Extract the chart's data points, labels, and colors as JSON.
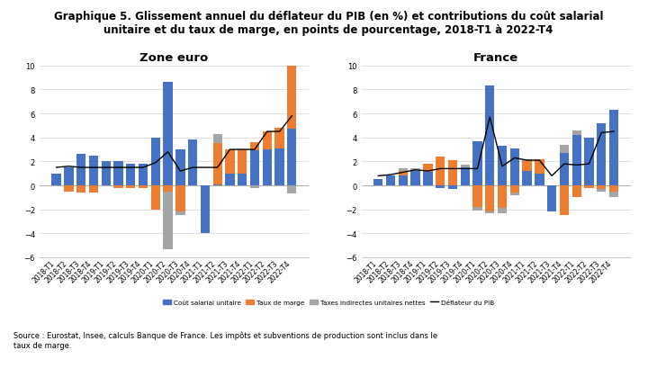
{
  "title": "Graphique 5. Glissement annuel du déflateur du PIB (en %) et contributions du coût salarial\nunitaire et du taux de marge, en points de pourcentage, 2018-T1 à 2022-T4",
  "source": "Source : Eurostat, Insee, calculs Banque de France. Les impôts et subventions de production sont inclus dans le\ntaux de marge.",
  "subtitle_left": "Zone euro",
  "subtitle_right": "France",
  "categories": [
    "2018-T1",
    "2018-T2",
    "2018-T3",
    "2018-T4",
    "2019-T1",
    "2019-T2",
    "2019-T3",
    "2019-T4",
    "2020-T1",
    "2020-T2",
    "2020-T3",
    "2020-T4",
    "2021-T1",
    "2021-T2",
    "2021-T3",
    "2021-T4",
    "2022-T1",
    "2022-T2",
    "2022-T3",
    "2022-T4"
  ],
  "zone_euro": {
    "cout_salarial": [
      1.0,
      1.5,
      2.6,
      2.5,
      2.0,
      2.0,
      1.8,
      1.8,
      4.0,
      8.6,
      3.0,
      3.8,
      -4.0,
      0.1,
      1.0,
      1.0,
      2.9,
      3.0,
      3.1,
      4.7
    ],
    "taux_marge": [
      0.0,
      -0.5,
      -0.6,
      -0.6,
      0.0,
      -0.2,
      -0.2,
      -0.2,
      -2.0,
      -0.5,
      -2.2,
      0.0,
      0.0,
      3.4,
      2.0,
      2.0,
      0.7,
      1.5,
      1.7,
      6.5
    ],
    "taxes_indirectes": [
      0.0,
      0.0,
      0.0,
      0.0,
      0.0,
      0.0,
      0.0,
      0.0,
      0.0,
      -4.8,
      -0.3,
      0.0,
      0.0,
      0.8,
      0.0,
      0.0,
      -0.2,
      0.0,
      0.0,
      -0.7
    ],
    "deflateur": [
      1.5,
      1.6,
      1.5,
      1.5,
      1.5,
      1.5,
      1.5,
      1.5,
      1.9,
      2.8,
      1.2,
      1.5,
      1.5,
      1.5,
      3.0,
      3.0,
      3.0,
      4.5,
      4.5,
      5.8
    ],
    "ylim": [
      -6,
      10
    ]
  },
  "france": {
    "cout_salarial": [
      0.5,
      0.8,
      0.8,
      1.2,
      1.1,
      -0.2,
      -0.3,
      1.5,
      3.7,
      8.3,
      3.3,
      3.1,
      1.2,
      1.0,
      -2.2,
      2.7,
      4.2,
      4.0,
      5.2,
      6.3
    ],
    "taux_marge": [
      0.0,
      0.0,
      0.4,
      0.0,
      0.7,
      2.4,
      2.1,
      0.0,
      -1.8,
      -2.2,
      -1.9,
      -0.6,
      0.8,
      1.2,
      0.0,
      -2.5,
      -1.0,
      -0.2,
      -0.3,
      -0.5
    ],
    "taxes_indirectes": [
      0.0,
      0.0,
      0.2,
      0.2,
      0.0,
      0.0,
      0.0,
      0.2,
      -0.3,
      -0.1,
      -0.4,
      -0.2,
      0.2,
      0.0,
      0.0,
      0.7,
      0.4,
      0.0,
      -0.2,
      -0.5
    ],
    "deflateur": [
      0.8,
      0.9,
      1.1,
      1.3,
      1.2,
      1.4,
      1.4,
      1.4,
      1.4,
      5.7,
      1.6,
      2.3,
      2.1,
      2.1,
      0.8,
      1.8,
      1.7,
      1.8,
      4.4,
      4.5
    ],
    "ylim": [
      -6,
      10
    ]
  },
  "colors": {
    "cout_salarial": "#4472C4",
    "taux_marge": "#ED7D31",
    "taxes_indirectes": "#A5A5A5",
    "deflateur": "#000000"
  },
  "legend_labels": [
    "Coût salarial unitaire",
    "Taux de marge",
    "Taxes indirectes unitaires nettes",
    "Déflateur du PIB"
  ],
  "tick_fontsize": 5.5,
  "title_fontsize": 8.5,
  "subtitle_fontsize": 9.5
}
